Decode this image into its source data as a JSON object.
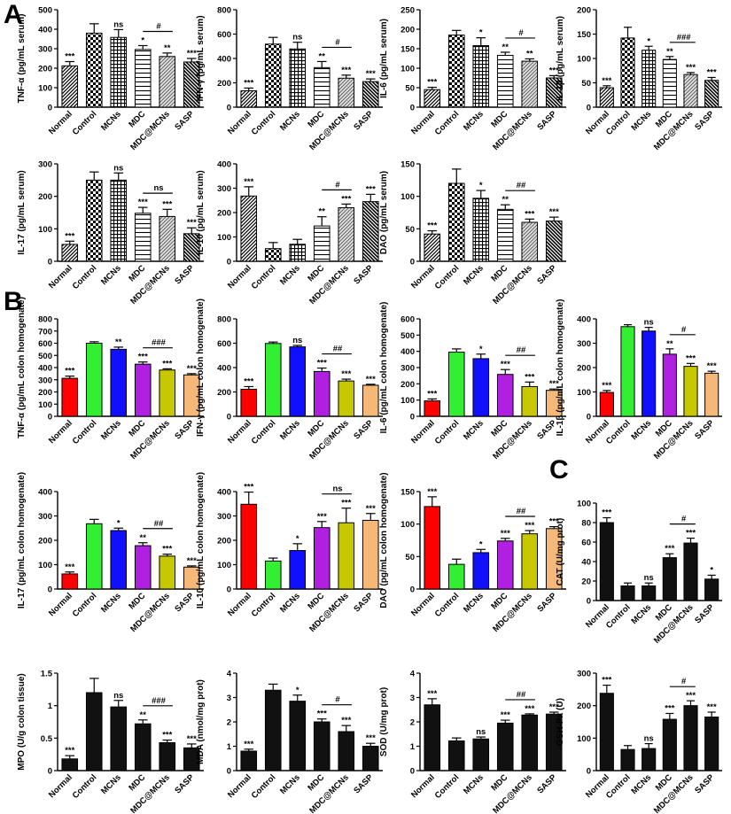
{
  "figure": {
    "panel_labels": [
      "A",
      "B",
      "C"
    ],
    "colors": {
      "Normal": "#ff0000",
      "Control": "#33ee33",
      "MCNs": "#1010ff",
      "MDC": "#b020e0",
      "MDC@MCNs": "#c8c800",
      "SASP": "#f5b878",
      "black": "#111111"
    }
  },
  "chart_data": [
    {
      "id": "a_tnf",
      "panel": "A",
      "type": "bar",
      "style": "pattern",
      "categories": [
        "Normal",
        "Control",
        "MCNs",
        "MDC",
        "MDC@MCNs",
        "SASP"
      ],
      "values": [
        212,
        380,
        358,
        296,
        260,
        232
      ],
      "errors": [
        22,
        48,
        40,
        20,
        18,
        18
      ],
      "sig": [
        "***",
        "",
        "ns",
        "*",
        "**",
        "***"
      ],
      "bracket": {
        "from": 3,
        "to": 4,
        "label": "#"
      },
      "ylabel": "TNF-α (pg/mL serum)",
      "ylim": [
        0,
        500
      ],
      "yticks": [
        0,
        100,
        200,
        300,
        400,
        500
      ]
    },
    {
      "id": "a_ifn",
      "panel": "A",
      "type": "bar",
      "style": "pattern",
      "categories": [
        "Normal",
        "Control",
        "MCNs",
        "MDC",
        "MDC@MCNs",
        "SASP"
      ],
      "values": [
        135,
        518,
        478,
        325,
        238,
        210
      ],
      "errors": [
        22,
        55,
        55,
        50,
        25,
        22
      ],
      "sig": [
        "***",
        "",
        "ns",
        "**",
        "***",
        "***"
      ],
      "bracket": {
        "from": 3,
        "to": 4,
        "label": "#"
      },
      "ylabel": "IFN-γ (pg/mL serum)",
      "ylim": [
        0,
        800
      ],
      "yticks": [
        0,
        200,
        400,
        600,
        800
      ]
    },
    {
      "id": "a_il6",
      "panel": "A",
      "type": "bar",
      "style": "pattern",
      "categories": [
        "Normal",
        "Control",
        "MCNs",
        "MDC",
        "MDC@MCNs",
        "SASP"
      ],
      "values": [
        45,
        185,
        158,
        133,
        118,
        75
      ],
      "errors": [
        6,
        12,
        20,
        8,
        6,
        6
      ],
      "sig": [
        "***",
        "",
        "*",
        "**",
        "**",
        "***"
      ],
      "bracket": {
        "from": 3,
        "to": 4,
        "label": "#"
      },
      "ylabel": "IL-6 (pg/mL serum)",
      "ylim": [
        0,
        250
      ],
      "yticks": [
        0,
        50,
        100,
        150,
        200,
        250
      ]
    },
    {
      "id": "a_il1b",
      "panel": "A",
      "type": "bar",
      "style": "pattern",
      "categories": [
        "Normal",
        "Control",
        "MCNs",
        "MDC",
        "MDC@MCNs",
        "SASP"
      ],
      "values": [
        40,
        142,
        117,
        98,
        67,
        55
      ],
      "errors": [
        4,
        22,
        8,
        6,
        4,
        6
      ],
      "sig": [
        "***",
        "",
        "*",
        "**",
        "***",
        "***"
      ],
      "bracket": {
        "from": 3,
        "to": 4,
        "label": "###"
      },
      "ylabel": "IL-1β (pg/mL serum)",
      "ylim": [
        0,
        200
      ],
      "yticks": [
        0,
        50,
        100,
        150,
        200
      ]
    },
    {
      "id": "a_il17",
      "panel": "A",
      "type": "bar",
      "style": "pattern",
      "categories": [
        "Normal",
        "Control",
        "MCNs",
        "MDC",
        "MDC@MCNs",
        "SASP"
      ],
      "values": [
        52,
        250,
        250,
        148,
        138,
        85
      ],
      "errors": [
        10,
        25,
        22,
        18,
        22,
        18
      ],
      "sig": [
        "***",
        "",
        "ns",
        "***",
        "***",
        "***"
      ],
      "bracket": {
        "from": 3,
        "to": 4,
        "label": "ns"
      },
      "ylabel": "IL-17 (pg/mL serum)",
      "ylim": [
        0,
        300
      ],
      "yticks": [
        0,
        100,
        200,
        300
      ]
    },
    {
      "id": "a_il10",
      "panel": "A",
      "type": "bar",
      "style": "pattern",
      "categories": [
        "Normal",
        "Control",
        "MCNs",
        "MDC",
        "MDC@MCNs",
        "SASP"
      ],
      "values": [
        268,
        52,
        70,
        145,
        220,
        245
      ],
      "errors": [
        38,
        25,
        20,
        38,
        15,
        30
      ],
      "sig": [
        "***",
        "",
        "",
        "**",
        "***",
        "***"
      ],
      "bracket": {
        "from": 3,
        "to": 4,
        "label": "#"
      },
      "ylabel": "IL-10 (pg/mL serum)",
      "ylim": [
        0,
        400
      ],
      "yticks": [
        0,
        100,
        200,
        300,
        400
      ]
    },
    {
      "id": "a_dao",
      "panel": "A",
      "type": "bar",
      "style": "pattern",
      "categories": [
        "Normal",
        "Control",
        "MCNs",
        "MDC",
        "MDC@MCNs",
        "SASP"
      ],
      "values": [
        42,
        120,
        97,
        80,
        60,
        62
      ],
      "errors": [
        5,
        22,
        12,
        7,
        5,
        6
      ],
      "sig": [
        "***",
        "",
        "*",
        "**",
        "***",
        "***"
      ],
      "bracket": {
        "from": 3,
        "to": 4,
        "label": "##"
      },
      "ylabel": "DAO (pg/mL serum)",
      "ylim": [
        0,
        150
      ],
      "yticks": [
        0,
        50,
        100,
        150
      ]
    },
    {
      "id": "b_tnf",
      "panel": "B",
      "type": "bar",
      "style": "color",
      "categories": [
        "Normal",
        "Control",
        "MCNs",
        "MDC",
        "MDC@MCNs",
        "SASP"
      ],
      "values": [
        312,
        600,
        550,
        428,
        380,
        340
      ],
      "errors": [
        18,
        12,
        18,
        18,
        10,
        10
      ],
      "sig": [
        "***",
        "",
        "**",
        "***",
        "***",
        "***"
      ],
      "bracket": {
        "from": 3,
        "to": 4,
        "label": "###"
      },
      "ylabel": "TNF-α (pg/mL colon homogenate)",
      "ylim": [
        0,
        800
      ],
      "yticks": [
        0,
        100,
        200,
        300,
        400,
        500,
        600,
        700,
        800
      ]
    },
    {
      "id": "b_ifn",
      "panel": "B",
      "type": "bar",
      "style": "color",
      "categories": [
        "Normal",
        "Control",
        "MCNs",
        "MDC",
        "MDC@MCNs",
        "SASP"
      ],
      "values": [
        222,
        598,
        570,
        368,
        290,
        255
      ],
      "errors": [
        22,
        12,
        12,
        28,
        15,
        8
      ],
      "sig": [
        "***",
        "",
        "ns",
        "***",
        "***",
        "***"
      ],
      "bracket": {
        "from": 3,
        "to": 4,
        "label": "##"
      },
      "ylabel": "IFN-γ (pg/mL colon homogenate)",
      "ylim": [
        0,
        800
      ],
      "yticks": [
        0,
        200,
        400,
        600,
        800
      ]
    },
    {
      "id": "b_il6",
      "panel": "B",
      "type": "bar",
      "style": "color",
      "categories": [
        "Normal",
        "Control",
        "MCNs",
        "MDC",
        "MDC@MCNs",
        "SASP"
      ],
      "values": [
        95,
        395,
        355,
        258,
        183,
        160
      ],
      "errors": [
        12,
        20,
        28,
        30,
        28,
        8
      ],
      "sig": [
        "***",
        "",
        "*",
        "***",
        "***",
        "***"
      ],
      "bracket": {
        "from": 3,
        "to": 4,
        "label": "##"
      },
      "ylabel": "IL-6 (pg/mL colon homogenate)",
      "ylim": [
        0,
        600
      ],
      "yticks": [
        0,
        100,
        200,
        300,
        400,
        500,
        600
      ]
    },
    {
      "id": "b_il1b",
      "panel": "B",
      "type": "bar",
      "style": "color",
      "categories": [
        "Normal",
        "Control",
        "MCNs",
        "MDC",
        "MDC@MCNs",
        "SASP"
      ],
      "values": [
        98,
        368,
        350,
        255,
        205,
        177
      ],
      "errors": [
        8,
        8,
        15,
        22,
        12,
        8
      ],
      "sig": [
        "***",
        "",
        "ns",
        "**",
        "***",
        "***"
      ],
      "bracket": {
        "from": 3,
        "to": 4,
        "label": "#"
      },
      "ylabel": "IL-1β (pg/mL colon homogenate)",
      "ylim": [
        0,
        400
      ],
      "yticks": [
        0,
        100,
        200,
        300,
        400
      ]
    },
    {
      "id": "b_il17",
      "panel": "B",
      "type": "bar",
      "style": "color",
      "categories": [
        "Normal",
        "Control",
        "MCNs",
        "MDC",
        "MDC@MCNs",
        "SASP"
      ],
      "values": [
        62,
        268,
        240,
        178,
        135,
        90
      ],
      "errors": [
        8,
        18,
        10,
        12,
        8,
        5
      ],
      "sig": [
        "***",
        "",
        "*",
        "**",
        "***",
        "***"
      ],
      "bracket": {
        "from": 3,
        "to": 4,
        "label": "##"
      },
      "ylabel": "IL-17 (pg/mL colon homogenate)",
      "ylim": [
        0,
        400
      ],
      "yticks": [
        0,
        100,
        200,
        300,
        400
      ]
    },
    {
      "id": "b_il10",
      "panel": "B",
      "type": "bar",
      "style": "color",
      "categories": [
        "Normal",
        "Control",
        "MCNs",
        "MDC",
        "MDC@MCNs",
        "SASP"
      ],
      "values": [
        348,
        115,
        158,
        252,
        272,
        282
      ],
      "errors": [
        50,
        12,
        28,
        25,
        60,
        28
      ],
      "sig": [
        "***",
        "",
        "*",
        "***",
        "***",
        "***"
      ],
      "bracket": {
        "from": 3,
        "to": 4,
        "label": "ns"
      },
      "ylabel": "IL-10 (pg/mL colon homogenate)",
      "ylim": [
        0,
        400
      ],
      "yticks": [
        0,
        100,
        200,
        300,
        400
      ]
    },
    {
      "id": "b_dao",
      "panel": "B",
      "type": "bar",
      "style": "color",
      "categories": [
        "Normal",
        "Control",
        "MCNs",
        "MDC",
        "MDC@MCNs",
        "SASP"
      ],
      "values": [
        127,
        38,
        56,
        74,
        85,
        93
      ],
      "errors": [
        15,
        8,
        5,
        4,
        5,
        3
      ],
      "sig": [
        "***",
        "",
        "*",
        "***",
        "***",
        "***"
      ],
      "bracket": {
        "from": 3,
        "to": 4,
        "label": "##"
      },
      "ylabel": "DAO (pg/mL colon homogenate)",
      "ylim": [
        0,
        150
      ],
      "yticks": [
        0,
        50,
        100,
        150
      ]
    },
    {
      "id": "c_cat",
      "panel": "C",
      "type": "bar",
      "style": "black",
      "categories": [
        "Normal",
        "Control",
        "MCNs",
        "MDC",
        "MDC@MCNs",
        "SASP"
      ],
      "values": [
        80,
        15,
        15,
        44,
        59,
        22
      ],
      "errors": [
        5,
        3,
        3,
        4,
        5,
        4
      ],
      "sig": [
        "***",
        "",
        "ns",
        "***",
        "***",
        "*"
      ],
      "bracket": {
        "from": 3,
        "to": 4,
        "label": "#"
      },
      "ylabel": "CAT (U/mg prot)",
      "ylim": [
        0,
        100
      ],
      "yticks": [
        0,
        20,
        40,
        60,
        80,
        100
      ]
    },
    {
      "id": "c_mpo",
      "panel": "C",
      "type": "bar",
      "style": "black",
      "categories": [
        "Normal",
        "Control",
        "MCNs",
        "MDC",
        "MDC@MCNs",
        "SASP"
      ],
      "values": [
        0.18,
        1.2,
        0.98,
        0.72,
        0.43,
        0.35
      ],
      "errors": [
        0.05,
        0.22,
        0.1,
        0.06,
        0.04,
        0.06
      ],
      "sig": [
        "***",
        "",
        "ns",
        "**",
        "***",
        "***"
      ],
      "bracket": {
        "from": 3,
        "to": 4,
        "label": "###"
      },
      "ylabel": "MPO (U/g colon tissue)",
      "ylim": [
        0,
        1.5
      ],
      "yticks": [
        0,
        0.5,
        1.0,
        1.5
      ]
    },
    {
      "id": "c_mda",
      "panel": "C",
      "type": "bar",
      "style": "black",
      "categories": [
        "Normal",
        "Control",
        "MCNs",
        "MDC",
        "MDC@MCNs",
        "SASP"
      ],
      "values": [
        0.8,
        3.3,
        2.85,
        2.0,
        1.6,
        1.0
      ],
      "errors": [
        0.08,
        0.25,
        0.25,
        0.12,
        0.25,
        0.12
      ],
      "sig": [
        "***",
        "",
        "*",
        "***",
        "***",
        "***"
      ],
      "bracket": {
        "from": 3,
        "to": 4,
        "label": "#"
      },
      "ylabel": "MDA (nmol/mg prot)",
      "ylim": [
        0,
        4
      ],
      "yticks": [
        0,
        1,
        2,
        3,
        4
      ]
    },
    {
      "id": "c_sod",
      "panel": "C",
      "type": "bar",
      "style": "black",
      "categories": [
        "Normal",
        "Control",
        "MCNs",
        "MDC",
        "MDC@MCNs",
        "SASP"
      ],
      "values": [
        2.7,
        1.22,
        1.3,
        1.95,
        2.28,
        2.32
      ],
      "errors": [
        0.25,
        0.12,
        0.08,
        0.12,
        0.05,
        0.08
      ],
      "sig": [
        "***",
        "",
        "ns",
        "***",
        "***",
        "***"
      ],
      "bracket": {
        "from": 3,
        "to": 4,
        "label": "##"
      },
      "ylabel": "SOD (U/mg prot)",
      "ylim": [
        0,
        4
      ],
      "yticks": [
        0,
        1,
        2,
        3,
        4
      ]
    },
    {
      "id": "c_gsh",
      "panel": "C",
      "type": "bar",
      "style": "black",
      "categories": [
        "Normal",
        "Control",
        "MCNs",
        "MDC",
        "MDC@MCNs",
        "SASP"
      ],
      "values": [
        238,
        65,
        68,
        158,
        200,
        165
      ],
      "errors": [
        25,
        12,
        15,
        18,
        15,
        15
      ],
      "sig": [
        "***",
        "",
        "ns",
        "***",
        "***",
        "***"
      ],
      "bracket": {
        "from": 3,
        "to": 4,
        "label": "#"
      },
      "ylabel": "GSH-Px (U)",
      "ylim": [
        0,
        300
      ],
      "yticks": [
        0,
        100,
        200,
        300
      ]
    }
  ]
}
